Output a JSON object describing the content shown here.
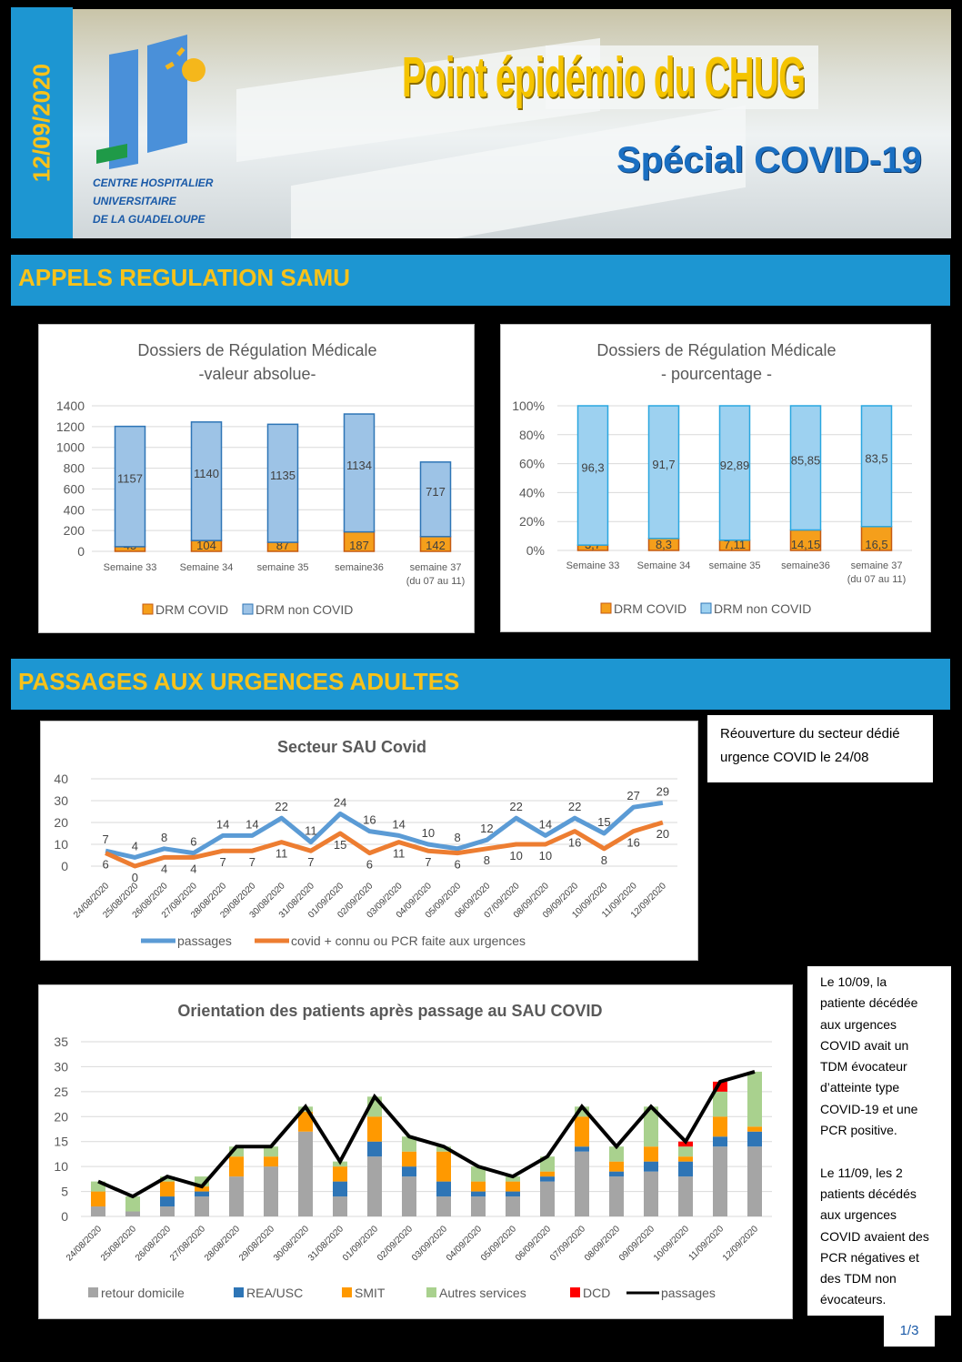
{
  "header": {
    "date": "12/09/2020",
    "title": "Point épidémio du CHUG",
    "subtitle": "Spécial COVID-19",
    "logo_text": [
      "CENTRE HOSPITALIER",
      "UNIVERSITAIRE",
      "DE LA GUADELOUPE"
    ]
  },
  "sections": {
    "samu": "APPELS REGULATION SAMU",
    "urgences": "PASSAGES AUX URGENCES ADULTES"
  },
  "notes": {
    "reopening": "Réouverture du secteur dédié urgence COVID le 24/08",
    "deaths": [
      "Le 10/09, la",
      "patiente décédée",
      "aux urgences",
      "COVID avait un",
      "TDM évocateur",
      "d’atteinte type",
      "COVID-19 et une",
      "PCR positive.",
      "",
      "Le 11/09, les 2",
      "patients décédés",
      "aux urgences",
      "COVID avaient des",
      "PCR négatives et",
      "des TDM non",
      "évocateurs."
    ]
  },
  "page": "1/3",
  "colors": {
    "blue_band": "#1d96d2",
    "yellow": "#f7c21a",
    "orange": "#f59f1b",
    "lightblue": "#9dc3e6"
  },
  "chart_data": [
    {
      "type": "bar",
      "stacked": true,
      "title": [
        "Dossiers de Régulation Médicale",
        "-valeur absolue-"
      ],
      "categories": [
        [
          "Semaine 33"
        ],
        [
          "Semaine 34"
        ],
        [
          "semaine 35"
        ],
        [
          "semaine36"
        ],
        [
          "semaine 37",
          "(du 07 au 11)"
        ]
      ],
      "yticks": [
        "0",
        "200",
        "400",
        "600",
        "800",
        "1000",
        "1200",
        "1400"
      ],
      "ylim": [
        0,
        1400
      ],
      "series": [
        {
          "name": "DRM COVID",
          "color": "#f59f1b",
          "values": [
            45,
            104,
            87,
            187,
            142
          ],
          "labels": [
            "45",
            "104",
            "87",
            "187",
            "142"
          ]
        },
        {
          "name": "DRM non COVID",
          "color": "#9dc3e6",
          "values": [
            1157,
            1140,
            1135,
            1134,
            717
          ],
          "labels": [
            "1157",
            "1140",
            "1135",
            "1134",
            "717"
          ]
        }
      ]
    },
    {
      "type": "bar",
      "stacked": true,
      "title": [
        "Dossiers de Régulation Médicale",
        "- pourcentage -"
      ],
      "categories": [
        [
          "Semaine 33"
        ],
        [
          "Semaine 34"
        ],
        [
          "semaine 35"
        ],
        [
          "semaine36"
        ],
        [
          "semaine 37",
          "(du 07 au 11)"
        ]
      ],
      "yticks": [
        "0%",
        "20%",
        "40%",
        "60%",
        "80%",
        "100%"
      ],
      "ylim": [
        0,
        100
      ],
      "series": [
        {
          "name": "DRM COVID",
          "color": "#f59f1b",
          "values": [
            3.7,
            8.3,
            7.11,
            14.15,
            16.5
          ],
          "labels": [
            "3,7",
            "8,3",
            "7,11",
            "14,15",
            "16,5"
          ]
        },
        {
          "name": "DRM non COVID",
          "color": "#9dd1f0",
          "values": [
            96.3,
            91.7,
            92.89,
            85.85,
            83.5
          ],
          "labels": [
            "96,3",
            "91,7",
            "92,89",
            "85,85",
            "83,5"
          ]
        }
      ]
    },
    {
      "type": "line",
      "title": "Secteur SAU Covid",
      "categories": [
        "24/08/2020",
        "25/08/2020",
        "26/08/2020",
        "27/08/2020",
        "28/08/2020",
        "29/08/2020",
        "30/08/2020",
        "31/08/2020",
        "01/09/2020",
        "02/09/2020",
        "03/09/2020",
        "04/09/2020",
        "05/09/2020",
        "06/09/2020",
        "07/09/2020",
        "08/09/2020",
        "09/09/2020",
        "10/09/2020",
        "11/09/2020",
        "12/09/2020"
      ],
      "yticks": [
        "0",
        "10",
        "20",
        "30",
        "40"
      ],
      "ylim": [
        0,
        40
      ],
      "series": [
        {
          "name": "passages",
          "color": "#5b9bd5",
          "values": [
            7,
            4,
            8,
            6,
            14,
            14,
            22,
            11,
            24,
            16,
            14,
            10,
            8,
            12,
            22,
            14,
            22,
            15,
            27,
            29
          ]
        },
        {
          "name": "covid + connu ou PCR faite aux urgences",
          "color": "#ed7d31",
          "values": [
            6,
            0,
            4,
            4,
            7,
            7,
            11,
            7,
            15,
            6,
            11,
            7,
            6,
            8,
            10,
            10,
            16,
            8,
            16,
            20
          ]
        }
      ]
    },
    {
      "type": "bar",
      "stacked": true,
      "title": "Orientation des patients après passage au SAU COVID",
      "categories": [
        "24/08/2020",
        "25/08/2020",
        "26/08/2020",
        "27/08/2020",
        "28/08/2020",
        "29/08/2020",
        "30/08/2020",
        "31/08/2020",
        "01/09/2020",
        "02/09/2020",
        "03/09/2020",
        "04/09/2020",
        "05/09/2020",
        "06/09/2020",
        "07/09/2020",
        "08/09/2020",
        "09/09/2020",
        "10/09/2020",
        "11/09/2020",
        "12/09/2020"
      ],
      "yticks": [
        "0",
        "5",
        "10",
        "15",
        "20",
        "25",
        "30",
        "35"
      ],
      "ylim": [
        0,
        35
      ],
      "series": [
        {
          "name": "retour domicile",
          "color": "#a5a5a5",
          "values": [
            2,
            1,
            2,
            4,
            8,
            10,
            17,
            4,
            12,
            8,
            4,
            4,
            4,
            7,
            13,
            8,
            9,
            8,
            14,
            14
          ]
        },
        {
          "name": "REA/USC",
          "color": "#2e75b6",
          "values": [
            0,
            0,
            2,
            1,
            0,
            0,
            0,
            3,
            3,
            2,
            3,
            1,
            1,
            1,
            1,
            1,
            2,
            3,
            2,
            3
          ]
        },
        {
          "name": "SMIT",
          "color": "#ff9900",
          "values": [
            3,
            0,
            3,
            1,
            4,
            2,
            4,
            3,
            5,
            3,
            6,
            2,
            2,
            1,
            6,
            2,
            3,
            1,
            4,
            1
          ]
        },
        {
          "name": "Autres services",
          "color": "#a9d18e",
          "values": [
            2,
            3,
            1,
            2,
            2,
            2,
            1,
            1,
            4,
            3,
            1,
            3,
            1,
            3,
            2,
            3,
            8,
            2,
            5,
            11
          ]
        },
        {
          "name": "DCD",
          "color": "#ff0000",
          "values": [
            0,
            0,
            0,
            0,
            0,
            0,
            0,
            0,
            0,
            0,
            0,
            0,
            0,
            0,
            0,
            0,
            0,
            1,
            2,
            0
          ]
        }
      ],
      "line": {
        "name": "passages",
        "color": "#000000",
        "values": [
          7,
          4,
          8,
          6,
          14,
          14,
          22,
          11,
          24,
          16,
          14,
          10,
          8,
          12,
          22,
          14,
          22,
          15,
          27,
          29
        ]
      }
    }
  ]
}
